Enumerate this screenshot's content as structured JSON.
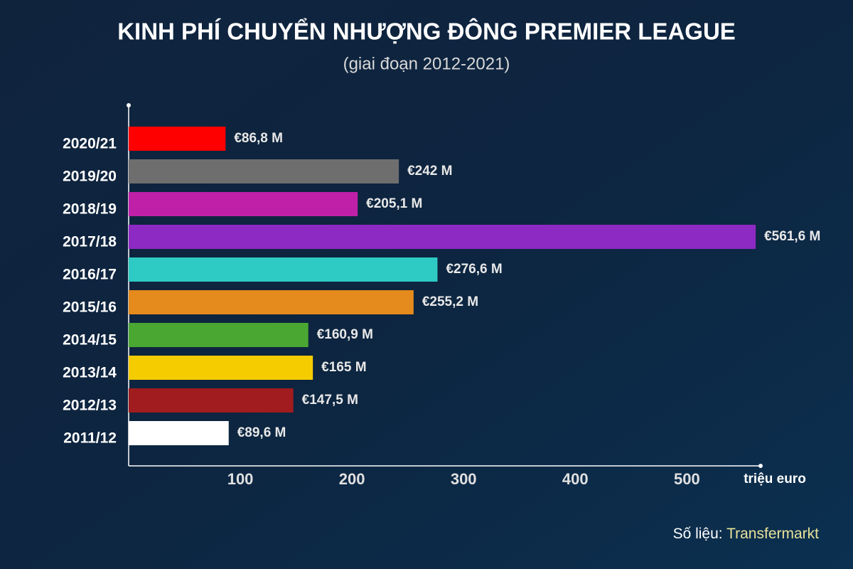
{
  "chart_data": {
    "type": "bar",
    "orientation": "horizontal",
    "title": "KINH PHÍ CHUYỂN NHƯỢNG ĐÔNG PREMIER LEAGUE",
    "subtitle": "(giai đoạn 2012-2021)",
    "x_label": "triệu euro",
    "categories": [
      "2020/21",
      "2019/20",
      "2018/19",
      "2017/18",
      "2016/17",
      "2015/16",
      "2014/15",
      "2013/14",
      "2012/13",
      "2011/12"
    ],
    "values": [
      86.8,
      242,
      205.1,
      561.6,
      276.6,
      255.2,
      160.9,
      165,
      147.5,
      89.6
    ],
    "value_labels": [
      "€86,8 M",
      "€242 M",
      "€205,1 M",
      "€561,6 M",
      "€276,6 M",
      "€255,2 M",
      "€160,9 M",
      "€165 M",
      "€147,5 M",
      "€89,6 M"
    ],
    "colors": [
      "#ff0000",
      "#6e6e6e",
      "#c020a8",
      "#8e2ac4",
      "#2ecbc4",
      "#e58a1c",
      "#4aa832",
      "#f5cc00",
      "#a01c1e",
      "#ffffff"
    ],
    "xlim": [
      0,
      566
    ],
    "xticks": [
      100,
      200,
      300,
      400,
      500
    ],
    "source": {
      "label": "Số liệu:",
      "name": "Transfermarkt"
    }
  }
}
